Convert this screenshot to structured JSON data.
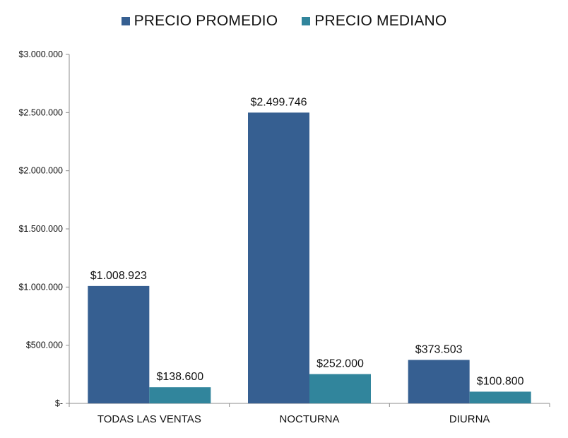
{
  "chart_data": {
    "type": "bar",
    "categories": [
      "TODAS LAS VENTAS",
      "NOCTURNA",
      "DIURNA"
    ],
    "series": [
      {
        "name": "PRECIO PROMEDIO",
        "color": "#365F91",
        "values": [
          1008923,
          2499746,
          373503
        ],
        "labels": [
          "$1.008.923",
          "$2.499.746",
          "$373.503"
        ]
      },
      {
        "name": "PRECIO MEDIANO",
        "color": "#31859C",
        "values": [
          138600,
          252000,
          100800
        ],
        "labels": [
          "$138.600",
          "$252.000",
          "$100.800"
        ]
      }
    ],
    "ylim": [
      0,
      3000000
    ],
    "yticks": [
      0,
      500000,
      1000000,
      1500000,
      2000000,
      2500000,
      3000000
    ],
    "ytick_labels": [
      "$-",
      "$500.000",
      "$1.000.000",
      "$1.500.000",
      "$2.000.000",
      "$2.500.000",
      "$3.000.000"
    ],
    "legend_position": "top-center",
    "grid": false
  }
}
